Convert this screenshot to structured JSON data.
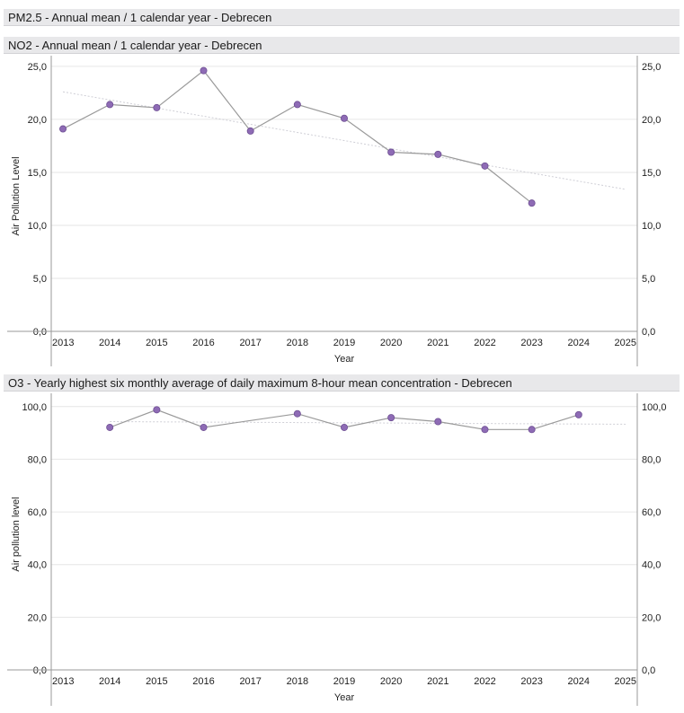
{
  "sections": {
    "pm25": {
      "title": "PM2.5 - Annual mean / 1 calendar year - Debrecen"
    },
    "no2": {
      "title": "NO2 - Annual mean / 1 calendar year - Debrecen"
    },
    "o3": {
      "title": "O3 - Yearly highest six monthly average of daily maximum 8-hour mean concentration - Debrecen"
    }
  },
  "colors": {
    "point": "#8e6bb5",
    "point_stroke": "#6e4f93",
    "line": "#9a9a9a",
    "trend": "#cfcfd6",
    "grid": "#e6e6e6",
    "axis": "#9a9a9a"
  },
  "chart_data": [
    {
      "id": "no2",
      "type": "line",
      "xlabel": "Year",
      "ylabel": "Air Pollution Level",
      "x_ticks": [
        "2013",
        "2014",
        "2015",
        "2016",
        "2017",
        "2018",
        "2019",
        "2020",
        "2021",
        "2022",
        "2023",
        "2024",
        "2025"
      ],
      "xlim": [
        2012.75,
        2025.25
      ],
      "ylim": [
        0,
        25.5
      ],
      "y_ticks": [
        0,
        5,
        10,
        15,
        20,
        25
      ],
      "y_tick_labels_left": [
        "0,0",
        "5,0",
        "10,0",
        "15,0",
        "20,0",
        "25,0"
      ],
      "y_tick_labels_right": [
        "0,0",
        "5,0",
        "10,0",
        "15,0",
        "20,0",
        "25,0"
      ],
      "grid": true,
      "series": [
        {
          "x": [
            2013,
            2014,
            2015,
            2016,
            2017,
            2018,
            2019,
            2020,
            2021,
            2022,
            2023
          ],
          "y": [
            19.1,
            21.4,
            21.1,
            24.6,
            18.9,
            21.4,
            20.1,
            16.9,
            16.7,
            15.6,
            12.1
          ]
        }
      ],
      "trendline": {
        "x": [
          2013,
          2025
        ],
        "y": [
          22.6,
          13.4
        ]
      }
    },
    {
      "id": "o3",
      "type": "line",
      "xlabel": "Year",
      "ylabel": "Air pollution level",
      "x_ticks": [
        "2013",
        "2014",
        "2015",
        "2016",
        "2017",
        "2018",
        "2019",
        "2020",
        "2021",
        "2022",
        "2023",
        "2024",
        "2025"
      ],
      "xlim": [
        2012.75,
        2025.25
      ],
      "ylim": [
        0,
        103
      ],
      "y_ticks": [
        0,
        20,
        40,
        60,
        80,
        100
      ],
      "y_tick_labels_left": [
        "0,0",
        "20,0",
        "40,0",
        "60,0",
        "80,0",
        "100,0"
      ],
      "y_tick_labels_right": [
        "0,0",
        "20,0",
        "40,0",
        "60,0",
        "80,0",
        "100,0"
      ],
      "grid": true,
      "series": [
        {
          "segments": [
            {
              "x": [
                2014,
                2015,
                2016,
                2018,
                2019,
                2020,
                2021,
                2022,
                2023,
                2024
              ],
              "y": [
                92.1,
                98.8,
                92.1,
                97.3,
                92.1,
                95.8,
                94.3,
                91.3,
                91.3,
                96.9
              ]
            }
          ]
        }
      ],
      "trendline": {
        "x": [
          2014,
          2025
        ],
        "y": [
          94.3,
          93.3
        ]
      }
    }
  ]
}
